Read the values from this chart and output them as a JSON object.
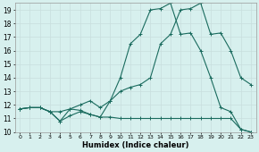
{
  "xlabel": "Humidex (Indice chaleur)",
  "x_values": [
    0,
    1,
    2,
    3,
    4,
    5,
    6,
    7,
    8,
    9,
    10,
    11,
    12,
    13,
    14,
    15,
    16,
    17,
    18,
    19,
    20,
    21,
    22,
    23
  ],
  "line1": [
    11.7,
    11.8,
    11.8,
    11.5,
    10.8,
    11.7,
    11.6,
    11.3,
    11.1,
    11.1,
    11.0,
    11.0,
    11.0,
    11.0,
    11.0,
    11.0,
    11.0,
    11.0,
    11.0,
    11.0,
    11.0,
    11.0,
    10.2,
    10.0
  ],
  "line2": [
    11.7,
    11.8,
    11.8,
    11.5,
    11.5,
    11.7,
    12.0,
    12.3,
    11.8,
    12.3,
    13.0,
    13.3,
    13.5,
    14.0,
    16.5,
    17.2,
    19.0,
    19.1,
    19.5,
    17.2,
    17.3,
    16.0,
    14.0,
    13.5
  ],
  "line3": [
    11.7,
    11.8,
    11.8,
    11.5,
    10.8,
    11.2,
    11.5,
    11.3,
    11.1,
    12.3,
    14.0,
    16.5,
    17.2,
    19.0,
    19.1,
    19.5,
    17.2,
    17.3,
    16.0,
    14.0,
    11.8,
    11.5,
    10.2,
    10.0
  ],
  "line_color": "#1a6b5e",
  "bg_color": "#d7f0ee",
  "grid_color": "#c8dedd",
  "ylim": [
    10,
    19.5
  ],
  "xlim": [
    -0.5,
    23.5
  ],
  "yticks": [
    10,
    11,
    12,
    13,
    14,
    15,
    16,
    17,
    18,
    19
  ],
  "xtick_labels": [
    "0",
    "1",
    "2",
    "3",
    "4",
    "5",
    "6",
    "7",
    "8",
    "9",
    "10",
    "11",
    "12",
    "13",
    "14",
    "15",
    "16",
    "17",
    "18",
    "19",
    "20",
    "21",
    "22",
    "23"
  ],
  "markersize": 3,
  "linewidth": 0.8
}
